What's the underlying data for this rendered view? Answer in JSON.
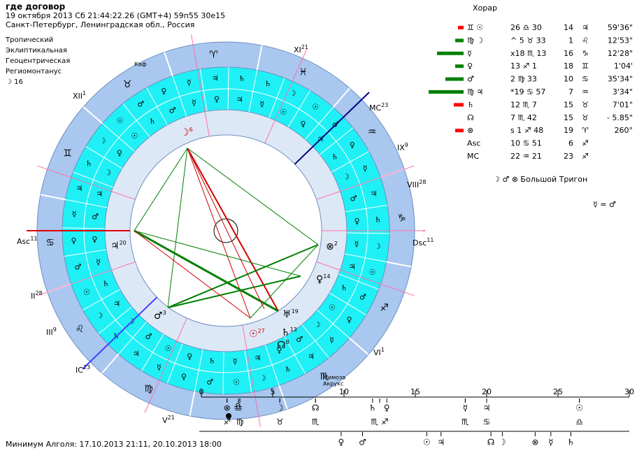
{
  "header": {
    "title": "где договор",
    "line1": "19 октября 2013  Сб  21:44:22.26 (GMT+4) 59п55  30е15",
    "line2": "Санкт-Петербург, Ленинградская обл., Россия"
  },
  "settings": [
    "Тропический",
    "Эклиптикальная",
    "Геоцентрическая",
    "Региомонтанус",
    "☽  16"
  ],
  "horar": {
    "title": "Хорар",
    "rows": [
      [
        "♊ ☉",
        "26 ♎ 30",
        "14",
        "♃",
        "59'36\""
      ],
      [
        "♍ ☽",
        "^ 5 ♉ 33",
        "1",
        "♌",
        "12'53\""
      ],
      [
        "☿",
        "x18 ♏ 13",
        "16",
        "♑",
        "12'28\""
      ],
      [
        "♀",
        "13 ♐  1",
        "18",
        "♊",
        "1'04'"
      ],
      [
        "♂",
        "2 ♍ 33",
        "10",
        "♋",
        "35'34\""
      ],
      [
        "♍ ♃",
        "*19 ♋ 57",
        "7",
        "♒",
        "3'34\""
      ],
      [
        "♄",
        "12 ♏  7",
        "15",
        "♉",
        "7'01\""
      ],
      [
        "☊",
        "7 ♏ 42",
        "15",
        "♉",
        "- 5.85\""
      ],
      [
        "⊗",
        "ѕ 1 ♐ 48",
        "19",
        "♈",
        "260°"
      ],
      [
        "Asc",
        "10 ♋ 51",
        "6",
        "♐"
      ],
      [
        "MC",
        "22 ♒ 21",
        "23",
        "♐"
      ]
    ],
    "aspect": "☽ ♂ ⊗  Большой Тригон",
    "equal": "☿ = ♂"
  },
  "chart": {
    "signs": [
      "♈",
      "♉",
      "♊",
      "♋",
      "♌",
      "♍",
      "♎",
      "♏",
      "♐",
      "♑",
      "♒",
      "♓"
    ],
    "ring_outer": [
      "♄",
      "♃",
      "☿",
      "♀",
      "♂",
      "☉",
      "☽",
      "♄",
      "♃",
      "☿",
      "♀",
      "♂",
      "☉",
      "☽",
      "♄",
      "♃",
      "☿",
      "♀",
      "♂",
      "☉",
      "☽",
      "♄",
      "♃",
      "☿",
      "♀",
      "♂",
      "☉",
      "☽",
      "♄",
      "♃",
      "☿",
      "♀",
      "♂",
      "☉",
      "☽",
      "♄"
    ],
    "ring_inner": [
      "♃",
      "♀",
      "☿",
      "♂",
      "♄",
      "☉",
      "♀",
      "☽",
      "♃",
      "♂",
      "♀",
      "☿",
      "♄",
      "♃",
      "☽",
      "♂",
      "☉",
      "♀",
      "♄",
      "☿",
      "♃",
      "♀",
      "♂",
      "☽",
      "☉",
      "♄",
      "♃",
      "☿",
      "♀",
      "♂",
      "☽",
      "♄",
      "♃",
      "♀",
      "☉",
      "☿"
    ],
    "houses": [
      {
        "label": "XII",
        "sup": "1"
      },
      {
        "label": "XI",
        "sup": "21"
      },
      {
        "label": "MC",
        "sup": "23"
      },
      {
        "label": "IX",
        "sup": "9"
      },
      {
        "label": "VIII",
        "sup": "28"
      },
      {
        "label": "Dsc",
        "sup": "11"
      },
      {
        "label": "VI",
        "sup": "1"
      },
      {
        "label": "V",
        "sup": "21"
      },
      {
        "label": "IC",
        "sup": "23"
      },
      {
        "label": "III",
        "sup": "9"
      },
      {
        "label": "II",
        "sup": "28"
      },
      {
        "label": "Asc",
        "sup": "11"
      }
    ],
    "planets": [
      {
        "glyph": "☽",
        "sup": "6"
      },
      {
        "glyph": "♃",
        "sup": "20"
      },
      {
        "glyph": "⊗",
        "sup": "2"
      },
      {
        "glyph": "♀",
        "sup": "14"
      },
      {
        "glyph": "♂",
        "sup": "3"
      },
      {
        "glyph": "☉",
        "sup": "27"
      },
      {
        "glyph": "♅",
        "sup": "19"
      },
      {
        "glyph": "♄",
        "sup": "13"
      },
      {
        "glyph": "☊",
        "sup": "8"
      }
    ],
    "notes": [
      "Каф",
      "Мимоза",
      "Акрукс"
    ]
  },
  "timeline": {
    "xlim": [
      0,
      30
    ],
    "xticks": [
      0,
      5,
      10,
      15,
      20,
      25,
      30
    ],
    "row1": [
      {
        "x": 1.8,
        "text": "⊗"
      },
      {
        "x": 2.6,
        "text": "♎"
      },
      {
        "x": 5.5,
        "text": "☽"
      },
      {
        "x": 8,
        "text": "☊"
      },
      {
        "x": 12,
        "text": "♄"
      },
      {
        "x": 13,
        "text": "♀"
      },
      {
        "x": 18.5,
        "text": "☿"
      },
      {
        "x": 20,
        "text": "♃"
      },
      {
        "x": 26.5,
        "text": "☉"
      }
    ],
    "row2": [
      {
        "x": 1.8,
        "text": "♐"
      },
      {
        "x": 2.7,
        "text": "♍"
      },
      {
        "x": 5.5,
        "text": "♉"
      },
      {
        "x": 8,
        "text": "♏"
      },
      {
        "x": 12.5,
        "text": "♏ ♐"
      },
      {
        "x": 18.5,
        "text": "♏"
      },
      {
        "x": 20,
        "text": "♋"
      },
      {
        "x": 26.5,
        "text": "♎"
      }
    ],
    "row3": [
      {
        "x": 9.8,
        "text": "♀"
      },
      {
        "x": 11.3,
        "text": "♂"
      },
      {
        "x": 15.8,
        "text": "☉"
      },
      {
        "x": 16.8,
        "text": "♃"
      },
      {
        "x": 20.3,
        "text": "☊"
      },
      {
        "x": 21.1,
        "text": "☽"
      },
      {
        "x": 23.4,
        "text": "⊗"
      },
      {
        "x": 24.5,
        "text": "☿"
      },
      {
        "x": 25.9,
        "text": "♄"
      }
    ],
    "footer": "Минимум Алголя: 17.10.2013 21:11,  20.10.2013 18:00"
  }
}
